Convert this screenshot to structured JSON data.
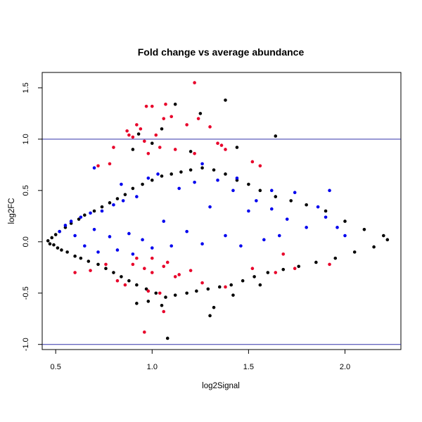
{
  "chart_data": {
    "type": "scatter",
    "title": "Fold change vs average abundance",
    "xlabel": "log2Signal",
    "ylabel": "log2FC",
    "xlim": [
      0.43,
      2.29
    ],
    "ylim": [
      -1.05,
      1.65
    ],
    "x_ticks": [
      0.5,
      1.0,
      1.5,
      2.0
    ],
    "x_tick_labels": [
      "0.5",
      "1.0",
      "1.5",
      "2.0"
    ],
    "y_ticks": [
      -1.0,
      -0.5,
      0.0,
      0.5,
      1.0,
      1.5
    ],
    "y_tick_labels": [
      "-1.0",
      "-0.5",
      "0.0",
      "0.5",
      "1.0",
      "1.5"
    ],
    "reference_lines_y": [
      1.0,
      -1.0
    ],
    "reference_line_color": "#3333aa",
    "grid": false,
    "legend": "none",
    "colors": {
      "background_points": "#000000",
      "blue_points": "#0000ee",
      "red_points": "#e8002a"
    },
    "series": [
      {
        "color": "#000000",
        "points": [
          [
            0.46,
            0.01
          ],
          [
            0.47,
            -0.02
          ],
          [
            0.48,
            0.04
          ],
          [
            0.49,
            -0.03
          ],
          [
            0.5,
            0.07
          ],
          [
            0.51,
            -0.06
          ],
          [
            0.52,
            0.1
          ],
          [
            0.53,
            -0.08
          ],
          [
            0.55,
            0.14
          ],
          [
            0.56,
            -0.1
          ],
          [
            0.58,
            0.18
          ],
          [
            0.6,
            -0.14
          ],
          [
            0.62,
            0.22
          ],
          [
            0.63,
            -0.16
          ],
          [
            0.65,
            0.26
          ],
          [
            0.67,
            -0.19
          ],
          [
            0.7,
            0.3
          ],
          [
            0.72,
            -0.22
          ],
          [
            0.74,
            0.34
          ],
          [
            0.76,
            -0.26
          ],
          [
            0.78,
            0.38
          ],
          [
            0.8,
            -0.3
          ],
          [
            0.82,
            0.42
          ],
          [
            0.84,
            -0.34
          ],
          [
            0.86,
            0.46
          ],
          [
            0.88,
            -0.38
          ],
          [
            0.9,
            0.52
          ],
          [
            0.92,
            -0.42
          ],
          [
            0.95,
            0.56
          ],
          [
            0.97,
            -0.46
          ],
          [
            1.0,
            0.6
          ],
          [
            1.02,
            -0.5
          ],
          [
            1.05,
            0.64
          ],
          [
            1.07,
            -0.54
          ],
          [
            1.1,
            0.66
          ],
          [
            1.12,
            -0.52
          ],
          [
            1.15,
            0.68
          ],
          [
            1.18,
            -0.5
          ],
          [
            1.2,
            0.7
          ],
          [
            1.23,
            -0.48
          ],
          [
            1.26,
            0.72
          ],
          [
            1.29,
            -0.46
          ],
          [
            1.32,
            0.7
          ],
          [
            1.35,
            -0.44
          ],
          [
            1.38,
            0.66
          ],
          [
            1.41,
            -0.42
          ],
          [
            1.44,
            0.6
          ],
          [
            1.47,
            -0.38
          ],
          [
            1.5,
            0.56
          ],
          [
            1.53,
            -0.34
          ],
          [
            1.56,
            0.5
          ],
          [
            1.6,
            -0.3
          ],
          [
            1.64,
            0.44
          ],
          [
            1.68,
            -0.27
          ],
          [
            1.72,
            0.4
          ],
          [
            1.76,
            -0.24
          ],
          [
            1.8,
            0.36
          ],
          [
            1.85,
            -0.2
          ],
          [
            1.9,
            0.3
          ],
          [
            1.95,
            -0.16
          ],
          [
            2.0,
            0.2
          ],
          [
            2.05,
            -0.1
          ],
          [
            2.1,
            0.12
          ],
          [
            2.15,
            -0.05
          ],
          [
            2.2,
            0.06
          ],
          [
            2.22,
            0.02
          ],
          [
            0.9,
            0.9
          ],
          [
            0.93,
            1.05
          ],
          [
            1.0,
            0.96
          ],
          [
            1.12,
            1.34
          ],
          [
            1.25,
            1.25
          ],
          [
            1.38,
            1.38
          ],
          [
            1.64,
            1.03
          ],
          [
            1.05,
            1.1
          ],
          [
            1.2,
            0.88
          ],
          [
            1.44,
            0.92
          ],
          [
            0.92,
            -0.6
          ],
          [
            1.05,
            -0.62
          ],
          [
            1.3,
            -0.72
          ],
          [
            1.32,
            -0.64
          ],
          [
            1.08,
            -0.94
          ],
          [
            0.98,
            -0.58
          ],
          [
            1.42,
            -0.52
          ],
          [
            1.56,
            -0.42
          ]
        ]
      },
      {
        "color": "#0000ee",
        "points": [
          [
            0.52,
            0.1
          ],
          [
            0.55,
            0.16
          ],
          [
            0.58,
            0.2
          ],
          [
            0.6,
            0.06
          ],
          [
            0.63,
            0.24
          ],
          [
            0.65,
            -0.04
          ],
          [
            0.68,
            0.28
          ],
          [
            0.7,
            0.12
          ],
          [
            0.72,
            -0.1
          ],
          [
            0.74,
            0.3
          ],
          [
            0.78,
            0.05
          ],
          [
            0.8,
            0.36
          ],
          [
            0.82,
            -0.08
          ],
          [
            0.85,
            0.4
          ],
          [
            0.88,
            0.08
          ],
          [
            0.9,
            -0.12
          ],
          [
            0.92,
            0.44
          ],
          [
            0.95,
            0.02
          ],
          [
            0.98,
            0.62
          ],
          [
            1.0,
            -0.06
          ],
          [
            1.03,
            0.66
          ],
          [
            1.06,
            0.2
          ],
          [
            1.1,
            -0.04
          ],
          [
            1.14,
            0.52
          ],
          [
            1.18,
            0.1
          ],
          [
            1.22,
            0.58
          ],
          [
            1.26,
            -0.02
          ],
          [
            1.3,
            0.34
          ],
          [
            1.34,
            0.6
          ],
          [
            1.38,
            0.06
          ],
          [
            1.42,
            0.5
          ],
          [
            1.46,
            -0.04
          ],
          [
            1.5,
            0.3
          ],
          [
            1.54,
            0.4
          ],
          [
            1.58,
            0.02
          ],
          [
            1.62,
            0.32
          ],
          [
            1.66,
            0.06
          ],
          [
            1.7,
            0.22
          ],
          [
            1.74,
            0.48
          ],
          [
            1.8,
            0.14
          ],
          [
            1.86,
            0.34
          ],
          [
            1.9,
            0.24
          ],
          [
            1.92,
            0.5
          ],
          [
            1.96,
            0.14
          ],
          [
            2.0,
            0.06
          ],
          [
            1.62,
            0.5
          ],
          [
            1.26,
            0.76
          ],
          [
            1.44,
            0.62
          ],
          [
            0.84,
            0.56
          ],
          [
            0.7,
            0.72
          ]
        ]
      },
      {
        "color": "#e8002a",
        "points": [
          [
            0.87,
            1.08
          ],
          [
            0.88,
            1.04
          ],
          [
            0.9,
            1.02
          ],
          [
            0.92,
            1.14
          ],
          [
            0.94,
            1.1
          ],
          [
            0.97,
            1.32
          ],
          [
            1.0,
            1.32
          ],
          [
            1.02,
            1.04
          ],
          [
            1.06,
            1.2
          ],
          [
            1.07,
            1.34
          ],
          [
            1.1,
            1.22
          ],
          [
            1.12,
            0.9
          ],
          [
            1.18,
            1.14
          ],
          [
            1.22,
            1.55
          ],
          [
            1.24,
            1.2
          ],
          [
            1.3,
            1.12
          ],
          [
            1.34,
            0.96
          ],
          [
            1.36,
            0.94
          ],
          [
            1.38,
            0.9
          ],
          [
            1.22,
            0.86
          ],
          [
            0.8,
            0.92
          ],
          [
            0.96,
            0.98
          ],
          [
            0.98,
            0.86
          ],
          [
            1.04,
            0.92
          ],
          [
            0.72,
            0.74
          ],
          [
            0.78,
            0.76
          ],
          [
            1.52,
            0.78
          ],
          [
            1.56,
            0.74
          ],
          [
            0.6,
            -0.3
          ],
          [
            0.68,
            -0.28
          ],
          [
            0.76,
            -0.22
          ],
          [
            0.9,
            -0.22
          ],
          [
            0.96,
            -0.26
          ],
          [
            1.0,
            -0.3
          ],
          [
            1.06,
            -0.24
          ],
          [
            1.12,
            -0.34
          ],
          [
            0.98,
            -0.48
          ],
          [
            1.04,
            -0.5
          ],
          [
            1.06,
            -0.68
          ],
          [
            0.96,
            -0.88
          ],
          [
            0.86,
            -0.42
          ],
          [
            1.14,
            -0.32
          ],
          [
            1.2,
            -0.28
          ],
          [
            1.26,
            -0.4
          ],
          [
            1.38,
            -0.44
          ],
          [
            1.52,
            -0.26
          ],
          [
            1.64,
            -0.3
          ],
          [
            1.68,
            -0.12
          ],
          [
            1.92,
            -0.22
          ],
          [
            1.74,
            -0.26
          ],
          [
            0.82,
            -0.38
          ],
          [
            1.0,
            -0.16
          ],
          [
            1.08,
            -0.2
          ],
          [
            0.92,
            -0.16
          ]
        ]
      }
    ]
  }
}
